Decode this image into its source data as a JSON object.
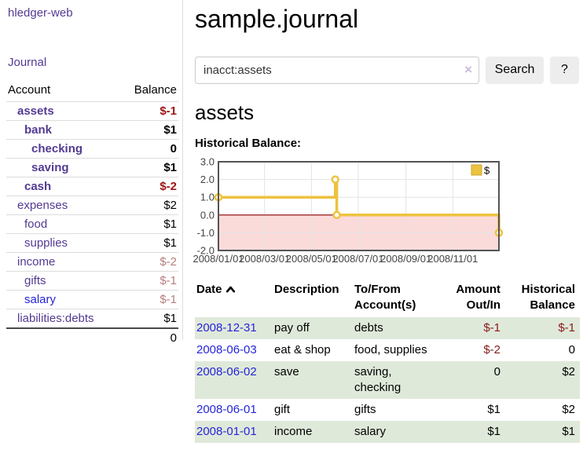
{
  "sidebar": {
    "brand": "hledger-web",
    "nav": {
      "journal_label": "Journal"
    },
    "accounts_table": {
      "headers": {
        "account": "Account",
        "balance": "Balance"
      },
      "rows": [
        {
          "name": "assets",
          "indent": 0,
          "bold": true,
          "link_color": "purple",
          "balance": "$-1",
          "balance_class": "neg-strong"
        },
        {
          "name": "bank",
          "indent": 1,
          "bold": true,
          "link_color": "purple",
          "balance": "$1",
          "balance_class": "strong"
        },
        {
          "name": "checking",
          "indent": 2,
          "bold": true,
          "link_color": "purple",
          "balance": "0",
          "balance_class": "strong"
        },
        {
          "name": "saving",
          "indent": 2,
          "bold": true,
          "link_color": "purple",
          "balance": "$1",
          "balance_class": "strong"
        },
        {
          "name": "cash",
          "indent": 1,
          "bold": true,
          "link_color": "purple",
          "balance": "$-2",
          "balance_class": "neg-strong"
        },
        {
          "name": "expenses",
          "indent": 0,
          "bold": false,
          "link_color": "purple",
          "balance": "$2",
          "balance_class": "plain"
        },
        {
          "name": "food",
          "indent": 1,
          "bold": false,
          "link_color": "purple",
          "balance": "$1",
          "balance_class": "plain"
        },
        {
          "name": "supplies",
          "indent": 1,
          "bold": false,
          "link_color": "purple",
          "balance": "$1",
          "balance_class": "plain"
        },
        {
          "name": "income",
          "indent": 0,
          "bold": false,
          "link_color": "purple",
          "balance": "$-2",
          "balance_class": "neg-muted"
        },
        {
          "name": "gifts",
          "indent": 1,
          "bold": false,
          "link_color": "purple",
          "balance": "$-1",
          "balance_class": "neg-muted"
        },
        {
          "name": "salary",
          "indent": 1,
          "bold": false,
          "link_color": "blue",
          "balance": "$-1",
          "balance_class": "neg-muted"
        },
        {
          "name": "liabilities:debts",
          "indent": 0,
          "bold": false,
          "link_color": "purple",
          "balance": "$1",
          "balance_class": "plain"
        }
      ],
      "total": "0"
    }
  },
  "main": {
    "title": "sample.journal",
    "search": {
      "value": "inacct:assets",
      "clear_icon": "×",
      "button_label": "Search",
      "help_label": "?"
    },
    "account_heading": "assets",
    "chart_heading": "Historical Balance:",
    "register_table": {
      "headers": {
        "date": "Date",
        "description": "Description",
        "accounts": "To/From\nAccount(s)",
        "amount": "Amount\nOut/In",
        "balance": "Historical\nBalance"
      },
      "rows": [
        {
          "date": "2008-12-31",
          "description": "pay off",
          "accounts": "debts",
          "amount": "$-1",
          "amount_neg": true,
          "balance": "$-1",
          "balance_neg": true,
          "stripe": true
        },
        {
          "date": "2008-06-03",
          "description": "eat & shop",
          "accounts": "food, supplies",
          "amount": "$-2",
          "amount_neg": true,
          "balance": "0",
          "balance_neg": false,
          "stripe": false
        },
        {
          "date": "2008-06-02",
          "description": "save",
          "accounts": "saving,\nchecking",
          "amount": "0",
          "amount_neg": false,
          "balance": "$2",
          "balance_neg": false,
          "stripe": true
        },
        {
          "date": "2008-06-01",
          "description": "gift",
          "accounts": "gifts",
          "amount": "$1",
          "amount_neg": false,
          "balance": "$2",
          "balance_neg": false,
          "stripe": false
        },
        {
          "date": "2008-01-01",
          "description": "income",
          "accounts": "salary",
          "amount": "$1",
          "amount_neg": false,
          "balance": "$1",
          "balance_neg": false,
          "stripe": true
        }
      ]
    }
  },
  "chart_data": {
    "type": "line",
    "step": true,
    "title": "Historical Balance",
    "series": [
      {
        "name": "$",
        "color": "#edc240",
        "points": [
          [
            "2008-01-01",
            1
          ],
          [
            "2008-06-01",
            2
          ],
          [
            "2008-06-03",
            0
          ],
          [
            "2008-12-31",
            -1
          ]
        ]
      }
    ],
    "x_ticks": [
      "2008/01/01",
      "2008/03/01",
      "2008/05/01",
      "2008/07/01",
      "2008/09/01",
      "2008/11/01"
    ],
    "x_domain": [
      "2008-01-01",
      "2008-12-31"
    ],
    "y_ticks": [
      3.0,
      2.0,
      1.0,
      0.0,
      -1.0,
      -2.0
    ],
    "ylim": [
      -2,
      3
    ],
    "grid": true,
    "legend": {
      "label": "$",
      "position": "top-right"
    }
  },
  "colors": {
    "link_purple": "#543a93",
    "link_blue": "#2525d8",
    "negative_strong": "#9c1515",
    "negative": "#8b1a1a",
    "negative_muted": "#b87e7e",
    "stripe_green": "#dfe9da",
    "chart_line": "#edc240",
    "chart_negative_fill": "#fbdada",
    "chart_zero_line": "#8b0000",
    "chart_border": "#545454",
    "chart_grid": "#e3e3e3"
  }
}
